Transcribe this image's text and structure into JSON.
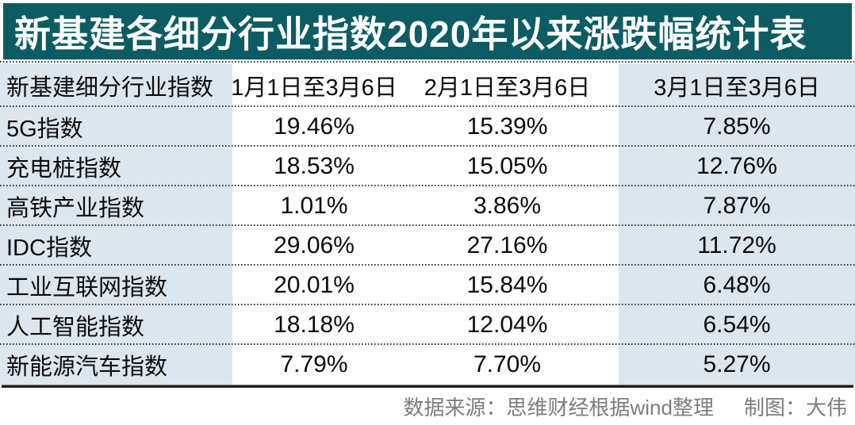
{
  "title": "新基建各细分行业指数2020年以来涨跌幅统计表",
  "table": {
    "headers": [
      "新基建细分行业指数",
      "1月1日至3月6日",
      "2月1日至3月6日",
      "3月1日至3月6日"
    ],
    "rows": [
      {
        "label": "5G指数",
        "values": [
          "19.46%",
          "15.39%",
          "7.85%"
        ]
      },
      {
        "label": "充电桩指数",
        "values": [
          "18.53%",
          "15.05%",
          "12.76%"
        ]
      },
      {
        "label": "高铁产业指数",
        "values": [
          "1.01%",
          "3.86%",
          "7.87%"
        ]
      },
      {
        "label": "IDC指数",
        "values": [
          "29.06%",
          "27.16%",
          "11.72%"
        ]
      },
      {
        "label": "工业互联网指数",
        "values": [
          "20.01%",
          "15.84%",
          "6.48%"
        ]
      },
      {
        "label": "人工智能指数",
        "values": [
          "18.18%",
          "12.04%",
          "6.54%"
        ]
      },
      {
        "label": "新能源汽车指数",
        "values": [
          "7.79%",
          "7.70%",
          "5.27%"
        ]
      }
    ]
  },
  "footer": {
    "source": "数据来源：思维财经根据wind整理",
    "credit": "制图：大伟"
  },
  "colors": {
    "title_bg": "#0D5C63",
    "title_text": "#FFFFFF",
    "band_bg": "#DBE6EF",
    "row_bg": "#FFFFFF",
    "dotted_divider": "#2E2E2E",
    "bottom_rule": "#1F1F1F",
    "footer_text": "#7D7D7D"
  },
  "chart_data": {
    "type": "table",
    "title": "新基建各细分行业指数2020年以来涨跌幅统计表",
    "columns": [
      "新基建细分行业指数",
      "1月1日至3月6日",
      "2月1日至3月6日",
      "3月1日至3月6日"
    ],
    "unit": "%",
    "rows": [
      [
        "5G指数",
        19.46,
        15.39,
        7.85
      ],
      [
        "充电桩指数",
        18.53,
        15.05,
        12.76
      ],
      [
        "高铁产业指数",
        1.01,
        3.86,
        7.87
      ],
      [
        "IDC指数",
        29.06,
        27.16,
        11.72
      ],
      [
        "工业互联网指数",
        20.01,
        15.84,
        6.48
      ],
      [
        "人工智能指数",
        18.18,
        12.04,
        6.54
      ],
      [
        "新能源汽车指数",
        7.79,
        7.7,
        5.27
      ]
    ]
  }
}
